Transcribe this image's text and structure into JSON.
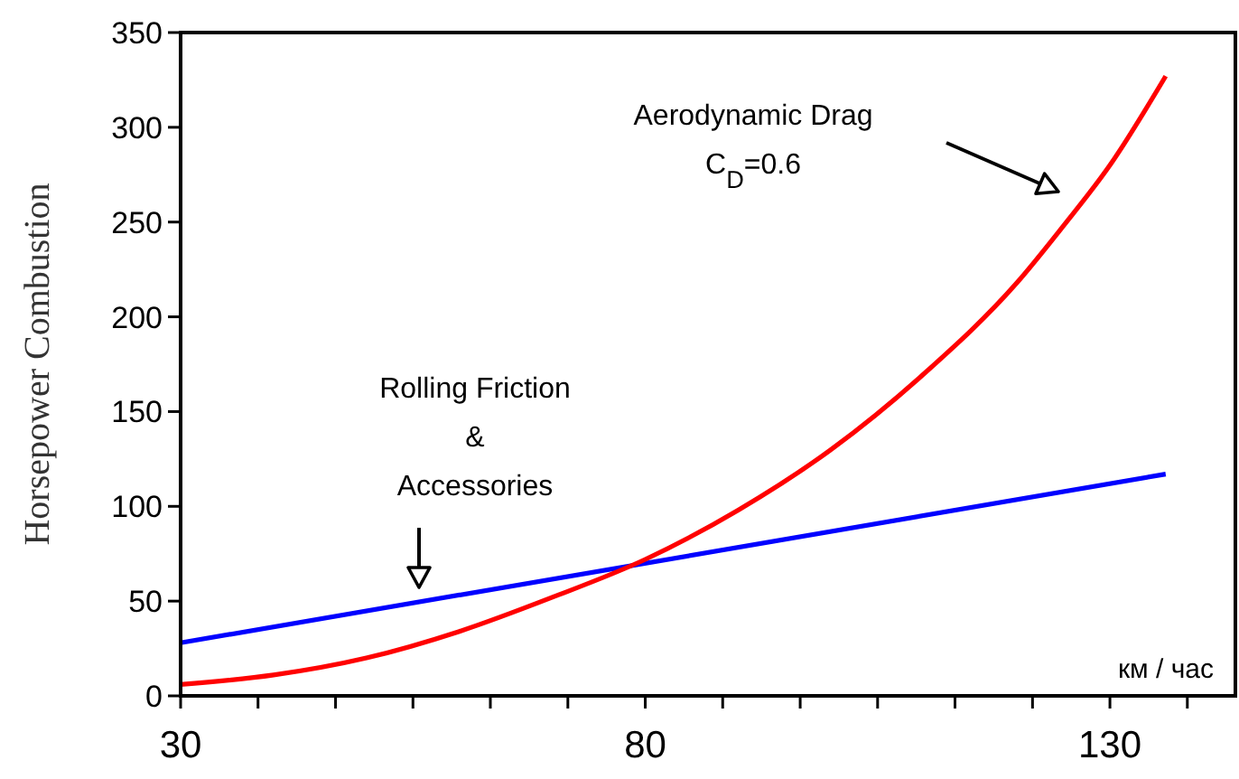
{
  "chart_data": {
    "type": "line",
    "ylabel": "Horsepower Combustion",
    "xlabel": "км / час",
    "xlim": [
      30,
      143.5
    ],
    "ylim": [
      0,
      350
    ],
    "xticks": [
      30,
      {
        "value": 38.33,
        "label": null
      },
      {
        "value": 46.67,
        "label": null
      },
      {
        "value": 55,
        "label": null
      },
      {
        "value": 63.33,
        "label": null
      },
      {
        "value": 71.67,
        "label": null
      },
      80,
      {
        "value": 88.33,
        "label": null
      },
      {
        "value": 96.67,
        "label": null
      },
      {
        "value": 105,
        "label": null
      },
      {
        "value": 113.33,
        "label": null
      },
      {
        "value": 121.67,
        "label": null
      },
      130,
      {
        "value": 138.33,
        "label": null
      }
    ],
    "yticks": [
      0,
      50,
      100,
      150,
      200,
      250,
      300,
      350
    ],
    "grid": false,
    "marker": "none",
    "line_style": "solid",
    "series": [
      {
        "color": "#0000ff",
        "x": [
          30,
          136
        ],
        "values": [
          28,
          117
        ]
      },
      {
        "color": "#ff0000",
        "x": [
          30,
          40,
          50,
          60,
          70,
          80,
          90,
          100,
          110,
          120,
          125,
          130,
          136
        ],
        "values": [
          6,
          11,
          20,
          34,
          52,
          72,
          98,
          130,
          170,
          218,
          248,
          280,
          327
        ]
      }
    ],
    "annotations": [
      "Aerodynamic Drag\nC$_{D}$=0.6",
      "Rolling Friction\n&\nAccessories"
    ]
  }
}
